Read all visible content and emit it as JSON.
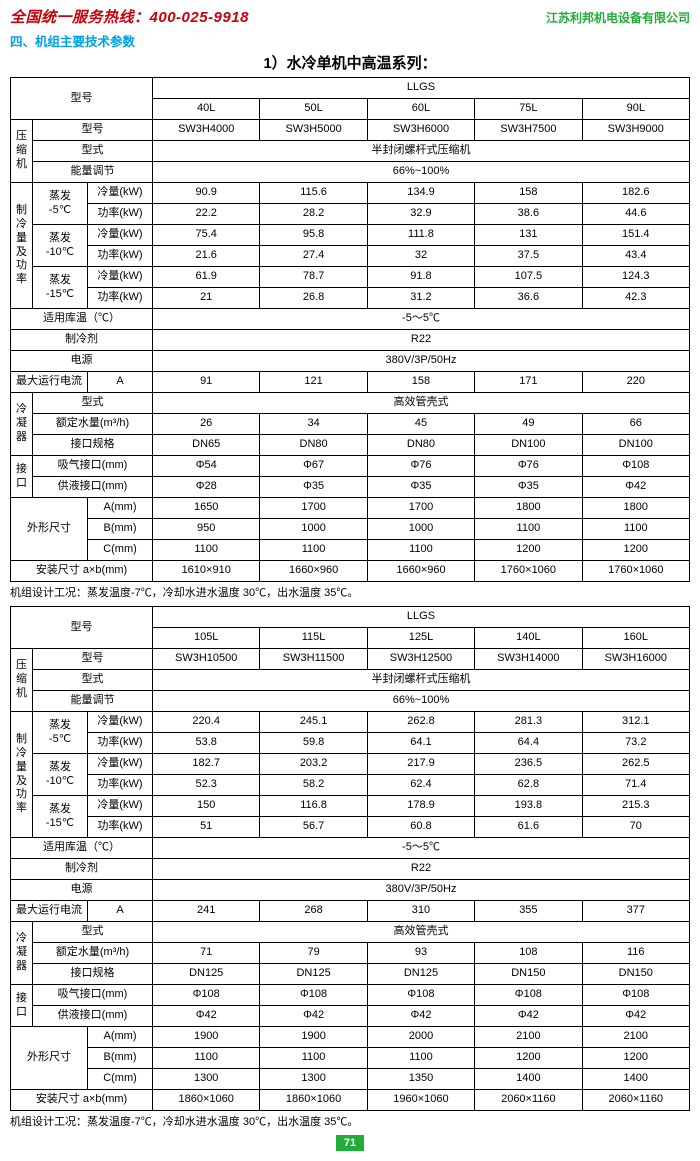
{
  "header": {
    "hotline_label": "全国统一服务热线：",
    "hotline_number": "400-025-9918",
    "company": "江苏利邦机电设备有限公司"
  },
  "section_title": "四、机组主要技术参数",
  "subtitle": "1）水冷单机中高温系列：",
  "labels": {
    "model": "型号",
    "llgs": "LLGS",
    "compressor": "压缩机",
    "comp_model": "型号",
    "comp_type": "型式",
    "comp_type_val": "半封闭螺杆式压缩机",
    "capacity_adj": "能量调节",
    "capacity_adj_val": "66%~100%",
    "cooling_power": "制冷量及功率",
    "evap_m5": "蒸发\n-5℃",
    "evap_m10": "蒸发\n-10℃",
    "evap_m15": "蒸发\n-15℃",
    "cooling_kw": "冷量(kW)",
    "power_kw": "功率(kW)",
    "storage_temp": "适用库温（℃）",
    "storage_temp_val": "-5～5℃",
    "refrigerant": "制冷剂",
    "refrigerant_val": "R22",
    "power_supply": "电源",
    "power_supply_val": "380V/3P/50Hz",
    "max_current": "最大运行电流",
    "amp": "A",
    "condenser": "冷凝器",
    "cond_type": "型式",
    "cond_type_val": "高效管壳式",
    "rated_water": "额定水量(m³/h)",
    "conn_spec": "接口规格",
    "ports": "接口",
    "suction": "吸气接口(mm)",
    "liquid": "供液接口(mm)",
    "dimensions": "外形尺寸",
    "a_mm": "A(mm)",
    "b_mm": "B(mm)",
    "c_mm": "C(mm)",
    "install": "安装尺寸 a×b(mm)"
  },
  "note": "机组设计工况：蒸发温度-7℃，冷却水进水温度 30℃，出水温度 35℃。",
  "t1": {
    "models": [
      "40L",
      "50L",
      "60L",
      "75L",
      "90L"
    ],
    "comp_model": [
      "SW3H4000",
      "SW3H5000",
      "SW3H6000",
      "SW3H7500",
      "SW3H9000"
    ],
    "e5_cool": [
      "90.9",
      "115.6",
      "134.9",
      "158",
      "182.6"
    ],
    "e5_pow": [
      "22.2",
      "28.2",
      "32.9",
      "38.6",
      "44.6"
    ],
    "e10_cool": [
      "75.4",
      "95.8",
      "111.8",
      "131",
      "151.4"
    ],
    "e10_pow": [
      "21.6",
      "27.4",
      "32",
      "37.5",
      "43.4"
    ],
    "e15_cool": [
      "61.9",
      "78.7",
      "91.8",
      "107.5",
      "124.3"
    ],
    "e15_pow": [
      "21",
      "26.8",
      "31.2",
      "36.6",
      "42.3"
    ],
    "max_cur": [
      "91",
      "121",
      "158",
      "171",
      "220"
    ],
    "water": [
      "26",
      "34",
      "45",
      "49",
      "66"
    ],
    "conn": [
      "DN65",
      "DN80",
      "DN80",
      "DN100",
      "DN100"
    ],
    "suction": [
      "Φ54",
      "Φ67",
      "Φ76",
      "Φ76",
      "Φ108"
    ],
    "liquid": [
      "Φ28",
      "Φ35",
      "Φ35",
      "Φ35",
      "Φ42"
    ],
    "dimA": [
      "1650",
      "1700",
      "1700",
      "1800",
      "1800"
    ],
    "dimB": [
      "950",
      "1000",
      "1000",
      "1100",
      "1100"
    ],
    "dimC": [
      "1100",
      "1100",
      "1100",
      "1200",
      "1200"
    ],
    "install": [
      "1610×910",
      "1660×960",
      "1660×960",
      "1760×1060",
      "1760×1060"
    ]
  },
  "t2": {
    "models": [
      "105L",
      "115L",
      "125L",
      "140L",
      "160L"
    ],
    "comp_model": [
      "SW3H10500",
      "SW3H11500",
      "SW3H12500",
      "SW3H14000",
      "SW3H16000"
    ],
    "e5_cool": [
      "220.4",
      "245.1",
      "262.8",
      "281.3",
      "312.1"
    ],
    "e5_pow": [
      "53.8",
      "59.8",
      "64.1",
      "64.4",
      "73.2"
    ],
    "e10_cool": [
      "182.7",
      "203.2",
      "217.9",
      "236.5",
      "262.5"
    ],
    "e10_pow": [
      "52.3",
      "58.2",
      "62.4",
      "62.8",
      "71.4"
    ],
    "e15_cool": [
      "150",
      "116.8",
      "178.9",
      "193.8",
      "215.3"
    ],
    "e15_pow": [
      "51",
      "56.7",
      "60.8",
      "61.6",
      "70"
    ],
    "max_cur": [
      "241",
      "268",
      "310",
      "355",
      "377"
    ],
    "water": [
      "71",
      "79",
      "93",
      "108",
      "116"
    ],
    "conn": [
      "DN125",
      "DN125",
      "DN125",
      "DN150",
      "DN150"
    ],
    "suction": [
      "Φ108",
      "Φ108",
      "Φ108",
      "Φ108",
      "Φ108"
    ],
    "liquid": [
      "Φ42",
      "Φ42",
      "Φ42",
      "Φ42",
      "Φ42"
    ],
    "dimA": [
      "1900",
      "1900",
      "2000",
      "2100",
      "2100"
    ],
    "dimB": [
      "1100",
      "1100",
      "1100",
      "1200",
      "1200"
    ],
    "dimC": [
      "1300",
      "1300",
      "1350",
      "1400",
      "1400"
    ],
    "install": [
      "1860×1060",
      "1860×1060",
      "1960×1060",
      "2060×1160",
      "2060×1160"
    ]
  },
  "page_number": "71",
  "colors": {
    "red": "#c7000b",
    "green": "#22ac38",
    "blue": "#00a0e9",
    "border": "#000000",
    "bg": "#ffffff"
  }
}
